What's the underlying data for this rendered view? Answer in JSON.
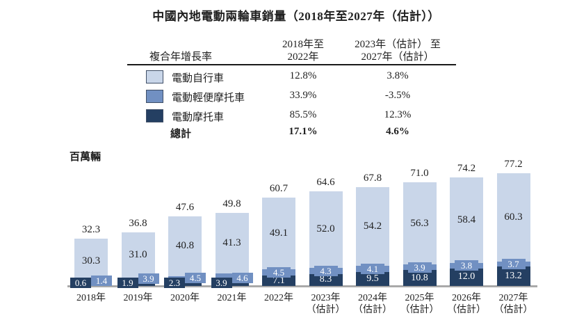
{
  "title": "中國內地電動兩輪車銷量（2018年至2027年（估計））",
  "cagr_table": {
    "header": {
      "row_label": "複合年增長率",
      "col1_line1": "2018年至",
      "col1_line2": "2022年",
      "col2_line1": "2023年（估計） 至",
      "col2_line2": "2027年（估計）"
    },
    "rows": [
      {
        "key": "e-bicycle",
        "label": "電動自行車",
        "color": "#c9d6e9",
        "col1": "12.8%",
        "col2": "3.8%"
      },
      {
        "key": "e-moped",
        "label": "電動輕便摩托車",
        "color": "#7190c2",
        "col1": "33.9%",
        "col2": "-3.5%"
      },
      {
        "key": "e-motorcycle",
        "label": "電動摩托車",
        "color": "#243f62",
        "col1": "85.5%",
        "col2": "12.3%"
      }
    ],
    "total_row": {
      "label": "總計",
      "col1": "17.1%",
      "col2": "4.6%"
    }
  },
  "chart_data": {
    "type": "bar",
    "stacked": true,
    "title": "中國內地電動兩輪車銷量（2018年至2027年（估計））",
    "ylabel": "百萬輛",
    "ylim": [
      0,
      77.2
    ],
    "grid": false,
    "legend_position": "table-top-left",
    "categories": [
      {
        "year": "2018年",
        "est": ""
      },
      {
        "year": "2019年",
        "est": ""
      },
      {
        "year": "2020年",
        "est": ""
      },
      {
        "year": "2021年",
        "est": ""
      },
      {
        "year": "2022年",
        "est": ""
      },
      {
        "year": "2023年",
        "est": "（估計）"
      },
      {
        "year": "2024年",
        "est": "（估計）"
      },
      {
        "year": "2025年",
        "est": "（估計）"
      },
      {
        "year": "2026年",
        "est": "（估計）"
      },
      {
        "year": "2027年",
        "est": "（估計）"
      }
    ],
    "series": [
      {
        "key": "e-bicycle",
        "name": "電動自行車",
        "color": "#c9d6e9",
        "values": [
          30.3,
          31.0,
          40.8,
          41.3,
          49.1,
          52.0,
          54.2,
          56.3,
          58.4,
          60.3
        ]
      },
      {
        "key": "e-moped",
        "name": "電動輕便摩托車",
        "color": "#7190c2",
        "values": [
          1.4,
          3.9,
          4.5,
          4.6,
          4.5,
          4.3,
          4.1,
          3.9,
          3.8,
          3.7
        ]
      },
      {
        "key": "e-motorcycle",
        "name": "電動摩托車",
        "color": "#243f62",
        "values": [
          0.6,
          1.9,
          2.3,
          3.9,
          7.1,
          8.3,
          9.5,
          10.8,
          12.0,
          13.2
        ]
      }
    ],
    "totals": [
      32.3,
      36.8,
      47.6,
      49.8,
      60.7,
      64.6,
      67.8,
      71.0,
      74.2,
      77.2
    ]
  }
}
